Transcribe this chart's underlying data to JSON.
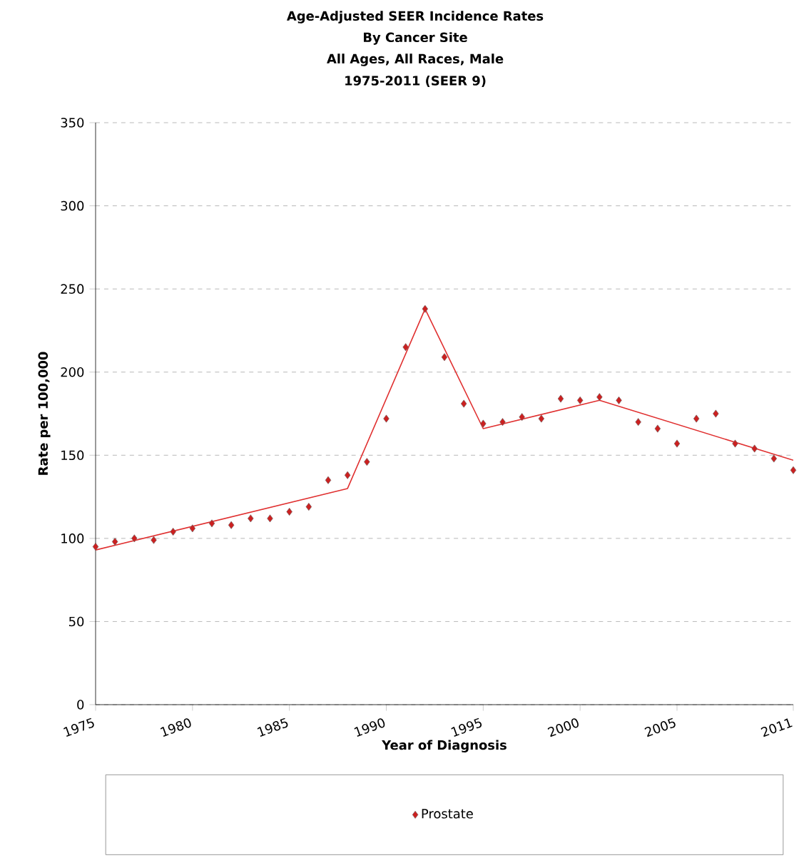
{
  "chart_data": {
    "type": "scatter",
    "title": "Age-Adjusted SEER Incidence Rates",
    "subtitle": "By Cancer Site",
    "annotations": [
      "All Ages, All Races, Male",
      "1975-2011  (SEER 9)"
    ],
    "xlabel": "Year of Diagnosis",
    "ylabel": "Rate per 100,000",
    "xlim": [
      1975,
      2011
    ],
    "xticks": [
      1975,
      1980,
      1985,
      1990,
      1995,
      2000,
      2005,
      2011
    ],
    "ylim": [
      0,
      350
    ],
    "yticks": [
      0,
      50,
      100,
      150,
      200,
      250,
      300,
      350
    ],
    "grid": "y",
    "legend": "bottom",
    "marker": "diamond",
    "series": [
      {
        "name": "Prostate",
        "color": "#cc2020",
        "x": [
          1975,
          1976,
          1977,
          1978,
          1979,
          1980,
          1981,
          1982,
          1983,
          1984,
          1985,
          1986,
          1987,
          1988,
          1989,
          1990,
          1991,
          1992,
          1993,
          1994,
          1995,
          1996,
          1997,
          1998,
          1999,
          2000,
          2001,
          2002,
          2003,
          2004,
          2005,
          2006,
          2007,
          2008,
          2009,
          2010,
          2011
        ],
        "values": [
          95,
          98,
          100,
          99,
          104,
          106,
          109,
          108,
          112,
          112,
          116,
          119,
          135,
          138,
          146,
          172,
          215,
          238,
          209,
          181,
          169,
          170,
          173,
          172,
          184,
          183,
          185,
          183,
          170,
          166,
          157,
          172,
          175,
          157,
          154,
          148,
          141
        ]
      },
      {
        "type": "line",
        "color": "#e03030",
        "marker": "none",
        "x": [
          1975,
          1988,
          1992,
          1995,
          2001,
          2011
        ],
        "values": [
          93,
          130,
          238,
          166,
          183,
          147
        ]
      }
    ]
  }
}
